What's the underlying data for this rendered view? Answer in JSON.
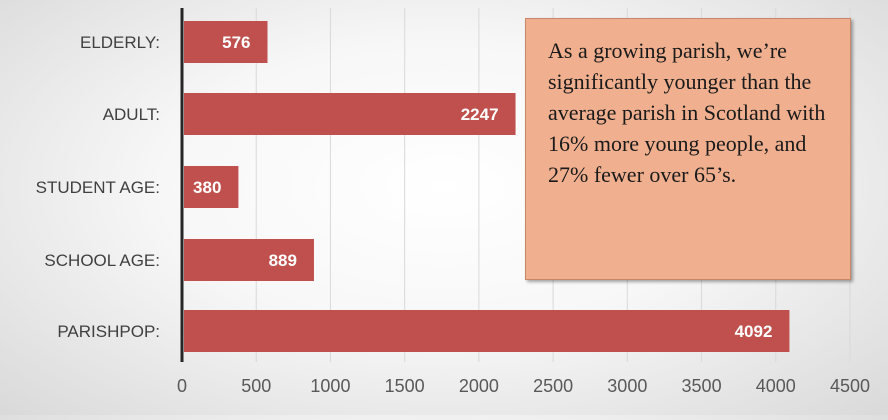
{
  "chart_data": {
    "type": "bar",
    "orientation": "horizontal",
    "categories": [
      "ELDERLY:",
      "ADULT:",
      "STUDENT AGE:",
      "SCHOOL AGE:",
      "PARISHPOP:"
    ],
    "values": [
      576,
      2247,
      380,
      889,
      4092
    ],
    "data_labels": [
      "576",
      "2247",
      "380",
      "889",
      "4092"
    ],
    "xlim": [
      0,
      4500
    ],
    "x_ticks": [
      0,
      500,
      1000,
      1500,
      2000,
      2500,
      3000,
      3500,
      4000,
      4500
    ],
    "x_tick_labels": [
      "0",
      "500",
      "1000",
      "1500",
      "2000",
      "2500",
      "3000",
      "3500",
      "4000",
      "4500"
    ],
    "grid": "vertical",
    "bar_color": "#c0504d",
    "label_color": "#ffffff"
  },
  "callout": {
    "text": "As a growing parish, we’re significantly younger than the average parish in Scotland with 16% more young people, and 27% fewer over 65’s.",
    "background": "#f0b08f"
  }
}
